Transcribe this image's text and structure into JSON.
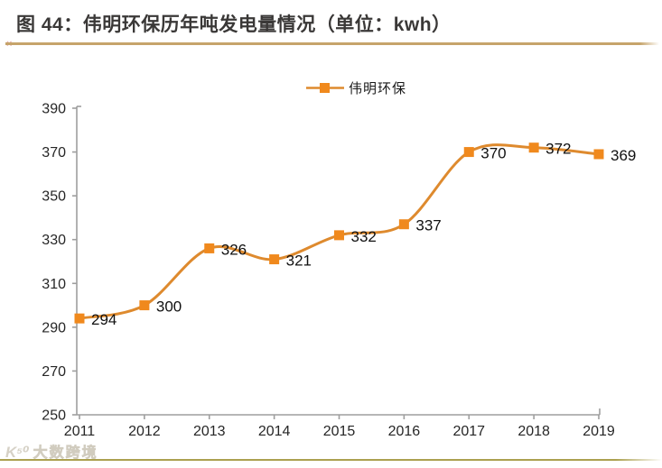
{
  "header": {
    "title": "图 44：伟明环保历年吨发电量情况（单位：kwh）"
  },
  "legend": {
    "label": "伟明环保"
  },
  "watermark": {
    "logo_text": "K⁵⁰",
    "text": "大数跨境"
  },
  "colors": {
    "series_line": "#DE8A2E",
    "series_marker": "#F0891D",
    "title_text": "#3A3837",
    "gold_rule": "#C6A46B",
    "bottom_rule": "#ABA04F",
    "axis": "#9E9E9E",
    "tick_label": "#262626",
    "data_label": "#111111"
  },
  "chart_data": {
    "type": "line",
    "title": "图 44：伟明环保历年吨发电量情况（单位：kwh）",
    "unit": "kwh",
    "categories": [
      "2011",
      "2012",
      "2013",
      "2014",
      "2015",
      "2016",
      "2017",
      "2018",
      "2019"
    ],
    "series": [
      {
        "name": "伟明环保",
        "values": [
          294,
          300,
          326,
          321,
          332,
          337,
          370,
          372,
          369
        ]
      }
    ],
    "ylim": [
      250,
      390
    ],
    "yticks": [
      250,
      270,
      290,
      310,
      330,
      350,
      370,
      390
    ],
    "grid": false,
    "legend_position": "top-center",
    "marker": "square",
    "smooth": true,
    "data_labels": true
  }
}
